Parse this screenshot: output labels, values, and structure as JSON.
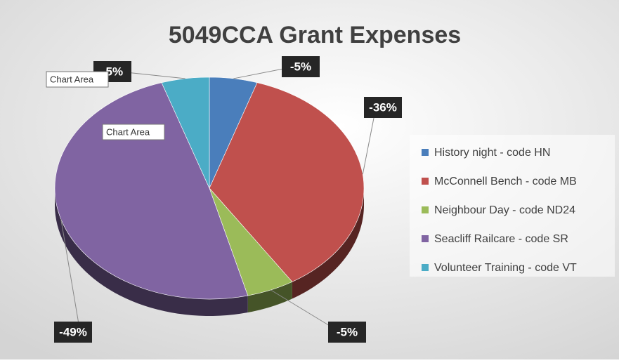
{
  "chart_data": {
    "type": "pie",
    "title": "5049CCA Grant Expenses",
    "categories": [
      "History night - code HN",
      "McConnell Bench - code MB",
      "Neighbour Day - code ND24",
      "Seacliff Railcare - code SR",
      "Volunteer Training - code VT"
    ],
    "values": [
      -5,
      -36,
      -5,
      -49,
      -5
    ],
    "value_labels": [
      "-5%",
      "-36%",
      "-5%",
      "-49%",
      "-5%"
    ],
    "colors": [
      "#4a7ebb",
      "#c0504d",
      "#9bbb59",
      "#8064a2",
      "#4bacc6"
    ],
    "legend": "right",
    "tooltips": [
      "Chart Area",
      "Chart Area"
    ]
  }
}
